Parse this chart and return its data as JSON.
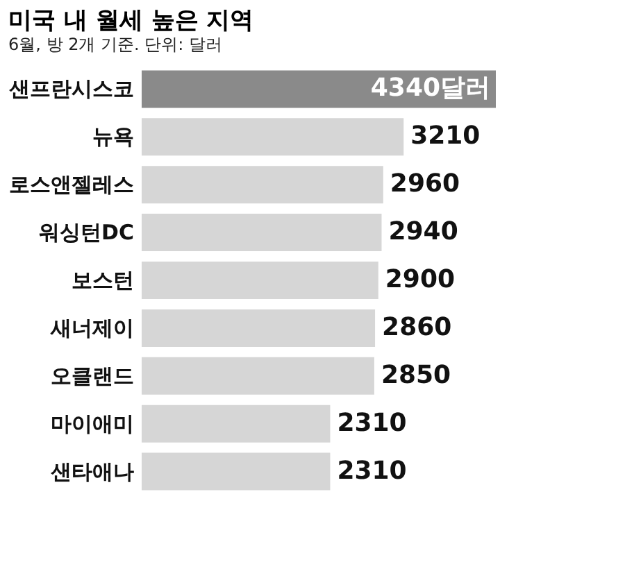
{
  "chart_data": {
    "type": "bar",
    "orientation": "horizontal",
    "title": "미국 내 월세 높은 지역",
    "subtitle": "6월, 방 2개 기준. 단위: 달러",
    "categories": [
      "샌프란시스코",
      "뉴욕",
      "로스앤젤레스",
      "워싱턴DC",
      "보스턴",
      "새너제이",
      "오클랜드",
      "마이애미",
      "샌타애나"
    ],
    "values": [
      4340,
      3210,
      2960,
      2940,
      2900,
      2860,
      2850,
      2310,
      2310
    ],
    "value_labels": [
      "4340달러",
      "3210",
      "2960",
      "2940",
      "2900",
      "2860",
      "2850",
      "2310",
      "2310"
    ],
    "colors": [
      "#8a8a8a",
      "#d6d6d6",
      "#d6d6d6",
      "#d6d6d6",
      "#d6d6d6",
      "#d6d6d6",
      "#d6d6d6",
      "#d6d6d6",
      "#d6d6d6"
    ],
    "grid": false
  }
}
